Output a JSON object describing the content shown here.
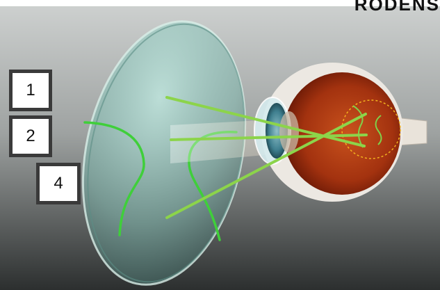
{
  "brand": "RODENS",
  "labels": [
    {
      "id": "1",
      "text": "1"
    },
    {
      "id": "2",
      "text": "2"
    },
    {
      "id": "4",
      "text": "4"
    }
  ],
  "colors": {
    "background_top": "#c3c6c5",
    "background_bottom": "#2e3131",
    "lens": "#8fcfc6",
    "ray": "#8cd44a",
    "lens_curve": "#3fcf3a",
    "retina": "#b23a12",
    "sclera": "#e8e4de",
    "iris": "#3f7f8f",
    "macula_ring": "#f2b21e"
  },
  "icons": [
    "lens-icon",
    "eye-icon"
  ]
}
